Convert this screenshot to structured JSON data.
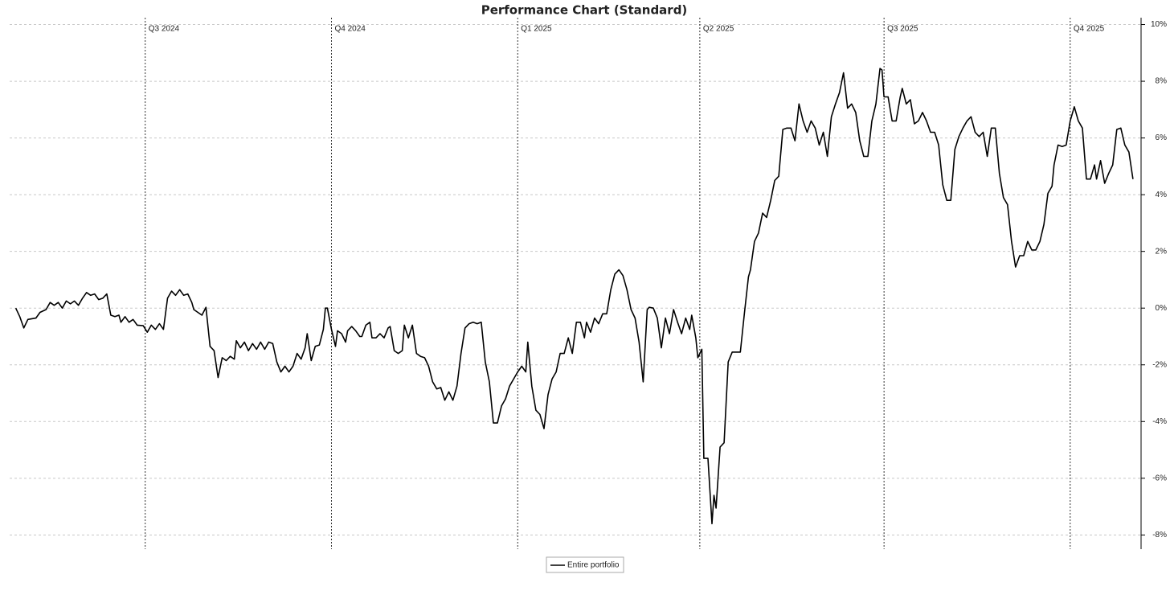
{
  "chart_data": {
    "type": "line",
    "title": "Performance Chart (Standard)",
    "x": [
      0,
      2,
      4,
      6,
      10,
      12,
      15,
      17,
      19,
      21,
      23,
      25,
      27,
      29,
      31,
      33,
      35,
      37,
      39,
      41,
      43,
      45,
      47,
      49,
      51,
      52,
      54,
      56,
      58,
      60,
      63,
      65,
      67,
      69,
      71,
      73,
      75,
      77,
      79,
      81,
      83,
      85,
      87,
      88,
      90,
      92,
      94,
      96,
      98,
      100,
      102,
      104,
      106,
      108,
      109,
      111,
      113,
      115,
      117,
      119,
      121,
      123,
      125,
      127,
      129,
      131,
      133,
      135,
      137,
      139,
      141,
      143,
      144,
      146,
      148,
      150,
      152,
      153,
      154,
      156,
      158,
      159,
      161,
      163,
      164,
      166,
      168,
      170,
      171,
      173,
      175,
      176,
      178,
      180,
      182,
      184,
      185,
      187,
      189,
      191,
      192,
      194,
      196,
      198,
      200,
      202,
      204,
      206,
      208,
      210,
      212,
      214,
      216,
      218,
      220,
      222,
      224,
      226,
      228,
      230,
      232,
      234,
      236,
      238,
      240,
      242,
      244,
      246,
      248,
      250,
      252,
      253,
      255,
      257,
      259,
      261,
      263,
      265,
      267,
      269,
      271,
      273,
      275,
      277,
      279,
      281,
      282,
      284,
      286,
      288,
      290,
      292,
      294,
      296,
      298,
      300,
      302,
      304,
      306,
      308,
      310,
      312,
      313,
      315,
      317,
      319,
      321,
      323,
      325,
      327,
      329,
      331,
      333,
      334,
      336,
      337,
      339,
      340,
      342,
      344,
      345,
      346,
      348,
      350,
      352,
      354,
      356,
      358,
      360,
      362,
      363,
      365,
      367,
      369,
      371,
      373,
      375,
      377,
      379,
      381,
      383,
      385,
      387,
      389,
      391,
      393,
      395,
      397,
      399,
      401,
      403,
      405,
      407,
      409,
      411,
      413,
      415,
      417,
      419,
      421,
      423,
      425,
      427,
      428,
      429,
      431,
      433,
      435,
      437,
      438,
      440,
      442,
      444,
      446,
      448,
      450,
      452,
      454,
      456,
      458,
      460,
      462,
      464,
      466,
      468,
      470,
      472,
      474,
      476,
      478,
      480,
      482,
      484,
      486,
      488,
      490,
      492,
      494,
      496,
      498,
      500,
      502,
      504,
      506,
      508,
      510,
      512,
      513,
      515,
      517,
      519,
      521,
      523,
      525,
      527,
      529,
      531,
      533,
      534,
      536,
      538,
      540,
      542,
      544,
      546,
      548,
      550,
      552
    ],
    "series": [
      {
        "name": "Entire portfolio",
        "color": "#000000",
        "values": [
          0,
          -0.3,
          -0.7,
          -0.4,
          -0.35,
          -0.15,
          -0.05,
          0.2,
          0.1,
          0.2,
          0,
          0.25,
          0.15,
          0.25,
          0.1,
          0.35,
          0.55,
          0.45,
          0.5,
          0.3,
          0.35,
          0.5,
          -0.25,
          -0.3,
          -0.25,
          -0.5,
          -0.3,
          -0.5,
          -0.4,
          -0.6,
          -0.62,
          -0.85,
          -0.6,
          -0.75,
          -0.55,
          -0.75,
          0.35,
          0.6,
          0.45,
          0.65,
          0.45,
          0.5,
          0.2,
          -0.05,
          -0.15,
          -0.25,
          0.03,
          -1.35,
          -1.5,
          -2.45,
          -1.75,
          -1.85,
          -1.7,
          -1.8,
          -1.15,
          -1.4,
          -1.2,
          -1.5,
          -1.25,
          -1.45,
          -1.2,
          -1.45,
          -1.2,
          -1.25,
          -1.9,
          -2.25,
          -2.05,
          -2.25,
          -2.05,
          -1.6,
          -1.8,
          -1.4,
          -0.9,
          -1.85,
          -1.35,
          -1.3,
          -0.75,
          0,
          0,
          -0.75,
          -1.35,
          -0.8,
          -0.9,
          -1.2,
          -0.8,
          -0.65,
          -0.8,
          -1.0,
          -1.0,
          -0.6,
          -0.5,
          -1.05,
          -1.05,
          -0.9,
          -1.05,
          -0.7,
          -0.65,
          -1.5,
          -1.6,
          -1.5,
          -0.6,
          -1.05,
          -0.6,
          -1.6,
          -1.7,
          -1.75,
          -2.05,
          -2.6,
          -2.85,
          -2.8,
          -3.25,
          -2.95,
          -3.25,
          -2.75,
          -1.6,
          -0.7,
          -0.55,
          -0.5,
          -0.55,
          -0.5,
          -1.9,
          -2.6,
          -4.05,
          -4.05,
          -3.45,
          -3.2,
          -2.75,
          -2.5,
          -2.25,
          -2.05,
          -2.25,
          -1.2,
          -2.75,
          -3.6,
          -3.75,
          -4.25,
          -3.05,
          -2.5,
          -2.25,
          -1.6,
          -1.6,
          -1.05,
          -1.6,
          -0.5,
          -0.5,
          -1.05,
          -0.5,
          -0.85,
          -0.35,
          -0.55,
          -0.2,
          -0.2,
          0.65,
          1.2,
          1.35,
          1.15,
          0.65,
          -0.05,
          -0.35,
          -1.2,
          -2.6,
          -0.05,
          0.03,
          0,
          -0.35,
          -1.4,
          -0.35,
          -0.9,
          -0.05,
          -0.5,
          -0.9,
          -0.35,
          -0.75,
          -0.25,
          -1.05,
          -1.75,
          -1.45,
          -5.3,
          -5.3,
          -7.6,
          -6.6,
          -7.05,
          -4.9,
          -4.75,
          -1.9,
          -1.55,
          -1.55,
          -1.55,
          -0.2,
          1.1,
          1.35,
          2.35,
          2.65,
          3.35,
          3.2,
          3.8,
          4.5,
          4.65,
          6.3,
          6.35,
          6.35,
          5.9,
          7.2,
          6.6,
          6.2,
          6.6,
          6.35,
          5.75,
          6.2,
          5.35,
          6.75,
          7.2,
          7.6,
          8.3,
          7.05,
          7.2,
          6.9,
          5.9,
          5.35,
          5.35,
          6.6,
          7.2,
          8.45,
          8.4,
          7.45,
          7.45,
          6.6,
          6.6,
          7.45,
          7.75,
          7.2,
          7.35,
          6.5,
          6.6,
          6.9,
          6.6,
          6.2,
          6.2,
          5.75,
          4.35,
          3.8,
          3.8,
          5.6,
          6.05,
          6.35,
          6.6,
          6.75,
          6.2,
          6.05,
          6.2,
          5.35,
          6.35,
          6.35,
          4.75,
          3.9,
          3.65,
          2.35,
          1.45,
          1.85,
          1.85,
          2.35,
          2.05,
          2.05,
          2.35,
          2.95,
          4.05,
          4.3,
          5.05,
          5.75,
          5.7,
          5.75,
          6.6,
          7.1,
          6.6,
          6.35,
          4.55,
          4.55,
          5.05,
          4.55,
          5.2,
          4.4,
          4.75,
          5.05,
          6.3,
          6.35,
          5.75,
          5.5,
          4.55
        ]
      }
    ],
    "xlim": [
      -3,
      556
    ],
    "xticks": [
      {
        "value": 64,
        "label": "Q3 2024"
      },
      {
        "value": 156,
        "label": "Q4 2024"
      },
      {
        "value": 248,
        "label": "Q1 2025"
      },
      {
        "value": 338,
        "label": "Q2 2025"
      },
      {
        "value": 429,
        "label": "Q3 2025"
      },
      {
        "value": 521,
        "label": "Q4 2025"
      }
    ],
    "ylim": [
      -8.5,
      10.1
    ],
    "yticks": [
      {
        "value": 10,
        "label": "10%"
      },
      {
        "value": 8,
        "label": "8%"
      },
      {
        "value": 6,
        "label": "6%"
      },
      {
        "value": 4,
        "label": "4%"
      },
      {
        "value": 2,
        "label": "2%"
      },
      {
        "value": 0,
        "label": "0%"
      },
      {
        "value": -2,
        "label": "-2%"
      },
      {
        "value": -4,
        "label": "-4%"
      },
      {
        "value": -6,
        "label": "-6%"
      },
      {
        "value": -8,
        "label": "-8%"
      }
    ],
    "grid": true,
    "legend": "bottom"
  }
}
